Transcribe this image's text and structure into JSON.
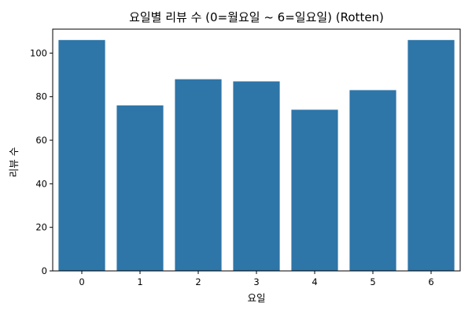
{
  "chart_data": {
    "type": "bar",
    "title": "요일별 리뷰 수 (0=월요일 ~ 6=일요일) (Rotten)",
    "xlabel": "요일",
    "ylabel": "리뷰 수",
    "categories": [
      "0",
      "1",
      "2",
      "3",
      "4",
      "5",
      "6"
    ],
    "values": [
      106,
      76,
      88,
      87,
      74,
      83,
      106
    ],
    "ylim": [
      0,
      111
    ],
    "yticks": [
      0,
      20,
      40,
      60,
      80,
      100
    ],
    "bar_color": "#2e75a8",
    "grid": false
  }
}
